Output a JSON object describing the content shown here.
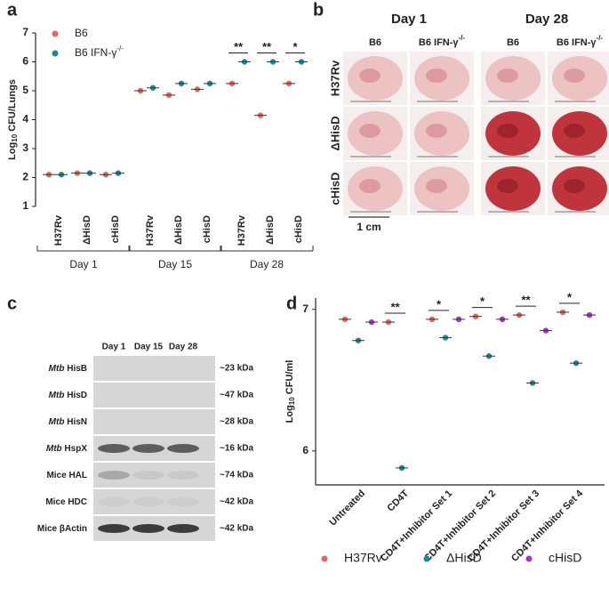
{
  "chart_data": [
    {
      "type": "dot",
      "label": "a",
      "y_label": {
        "base": "Log",
        "sub": "10",
        "rest": " CFU/Lungs"
      },
      "categories": [
        "H37Rv",
        "ΔHisD",
        "cHisD",
        "H37Rv",
        "ΔHisD",
        "cHisD",
        "H37Rv",
        "ΔHisD",
        "cHisD"
      ],
      "groups": [
        "Day 1",
        "Day 15",
        "Day 28"
      ],
      "series": [
        {
          "name": "B6",
          "color": "#e8665a",
          "values": [
            2.1,
            2.15,
            2.1,
            5.0,
            4.85,
            5.05,
            5.25,
            4.15,
            5.25
          ]
        },
        {
          "name": "B6 IFN-γ",
          "name_sup": "-/-",
          "color": "#1a8a96",
          "values": [
            2.1,
            2.15,
            2.15,
            5.1,
            5.25,
            5.25,
            6.0,
            6.0,
            6.0
          ]
        }
      ],
      "significance": [
        null,
        null,
        null,
        null,
        null,
        null,
        "**",
        "**",
        "*"
      ],
      "ylim": [
        1,
        7
      ],
      "yticks": [
        1,
        2,
        3,
        4,
        5,
        6,
        7
      ]
    },
    {
      "type": "dot",
      "label": "d",
      "y_label": {
        "base": "Log",
        "sub": "10",
        "rest": " CFU/ml"
      },
      "categories": [
        "Untreated",
        "CD4T",
        "CD4T+Inhibitor Set 1",
        "CD4T+Inhibitor Set 2",
        "CD4T+Inhibitor Set 3",
        "CD4T+Inhibitor Set 4"
      ],
      "series": [
        {
          "name": "H37Rv",
          "color": "#e8665a",
          "values": [
            6.93,
            6.91,
            6.93,
            6.95,
            6.96,
            6.98
          ]
        },
        {
          "name": "ΔHisD",
          "color": "#1a8a96",
          "values": [
            6.78,
            5.88,
            6.8,
            6.67,
            6.48,
            6.62
          ]
        },
        {
          "name": "cHisD",
          "color": "#a335c9",
          "values": [
            6.91,
            null,
            6.93,
            6.93,
            6.85,
            6.96
          ]
        }
      ],
      "significance": [
        null,
        "**",
        "*",
        "*",
        "**",
        "*"
      ],
      "ylim": [
        5.76,
        7.08
      ],
      "yticks": [
        6,
        7
      ]
    }
  ],
  "photo_panel": {
    "label": "b",
    "days": [
      "Day 1",
      "Day 28"
    ],
    "columns": [
      {
        "name": "B6"
      },
      {
        "name": "B6 IFN-γ",
        "sup": "-/-"
      },
      {
        "name": "B6"
      },
      {
        "name": "B6 IFN-γ",
        "sup": "-/-"
      }
    ],
    "rows": [
      "H37Rv",
      "ΔHisD",
      "cHisD"
    ],
    "scale": "1 cm"
  },
  "blot_panel": {
    "label": "c",
    "columns": [
      "Day 1",
      "Day 15",
      "Day 28"
    ],
    "rows": [
      {
        "prefix": "Mtb",
        "name": " HisB",
        "size": "~23 kDa"
      },
      {
        "prefix": "Mtb",
        "name": " HisD",
        "size": "~47 kDa"
      },
      {
        "prefix": "Mtb",
        "name": " HisN",
        "size": "~28 kDa"
      },
      {
        "prefix": "Mtb",
        "name": " HspX",
        "size": "~16 kDa"
      },
      {
        "name": "Mice HAL",
        "size": "~74 kDa"
      },
      {
        "name": "Mice HDC",
        "size": "~42 kDa"
      },
      {
        "name": "Mice βActin",
        "size": "~42 kDa"
      }
    ]
  }
}
